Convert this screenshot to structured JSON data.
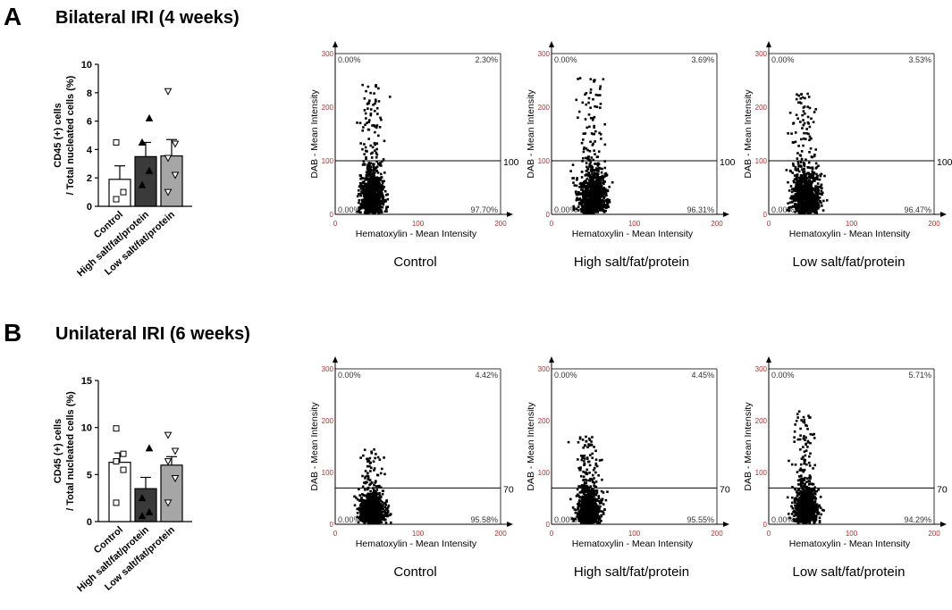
{
  "panels": [
    {
      "letter": "A",
      "title": "Bilateral IRI (4 weeks)",
      "bar": {
        "type": "bar",
        "ylabel_line1": "CD45 (+) cells",
        "ylabel_line2": "/ Total nucleated cells (%)",
        "ylim": [
          0,
          10
        ],
        "yticks": [
          "0",
          "2",
          "4",
          "6",
          "8",
          "10"
        ],
        "categories": [
          "Control",
          "High salt/fat/protein",
          "Low salt/fat/protein"
        ],
        "values": [
          1.9,
          3.5,
          3.55
        ],
        "errors": [
          0.95,
          1.0,
          1.15
        ],
        "fills": [
          "#ffffff",
          "#3a3a3a",
          "#a6a6a6"
        ],
        "points": [
          [
            0.5,
            1.0,
            4.5
          ],
          [
            1.5,
            2.5,
            4.5,
            6.2
          ],
          [
            1.0,
            2.2,
            3.4,
            4.4,
            8.1
          ]
        ],
        "markers": [
          "square",
          "triangle-up",
          "triangle-down"
        ]
      },
      "scatters": [
        {
          "subtitle": "Control",
          "threshold": "100",
          "q_tl": "0.00%",
          "q_tr": "2.30%",
          "q_bl": "0.00%",
          "q_br": "97.70%",
          "cx": 45,
          "cy": 42,
          "sx": 12,
          "sy": 40,
          "ymax": 245,
          "n": 900,
          "seed": 11
        },
        {
          "subtitle": "High salt/fat/protein",
          "threshold": "100",
          "q_tl": "0.00%",
          "q_tr": "3.69%",
          "q_bl": "0.00%",
          "q_br": "96.31%",
          "cx": 50,
          "cy": 45,
          "sx": 13,
          "sy": 42,
          "ymax": 255,
          "n": 950,
          "seed": 23
        },
        {
          "subtitle": "Low salt/fat/protein",
          "threshold": "100",
          "q_tl": "0.00%",
          "q_tr": "3.53%",
          "q_bl": "0.00%",
          "q_br": "96.47%",
          "cx": 45,
          "cy": 48,
          "sx": 14,
          "sy": 40,
          "ymax": 225,
          "n": 950,
          "seed": 37
        }
      ]
    },
    {
      "letter": "B",
      "title": "Unilateral IRI (6 weeks)",
      "bar": {
        "type": "bar",
        "ylabel_line1": "CD45 (+) cells",
        "ylabel_line2": "/ Total nucleated cells (%)",
        "ylim": [
          0,
          15
        ],
        "yticks": [
          "0",
          "5",
          "10",
          "15"
        ],
        "categories": [
          "Control",
          "High salt/fat/protein",
          "Low salt/fat/protein"
        ],
        "values": [
          6.3,
          3.5,
          6.0
        ],
        "errors": [
          1.0,
          1.2,
          0.9
        ],
        "fills": [
          "#ffffff",
          "#3a3a3a",
          "#a6a6a6"
        ],
        "points": [
          [
            2.0,
            5.5,
            6.4,
            7.2,
            9.9
          ],
          [
            0.6,
            1.0,
            2.5,
            7.8
          ],
          [
            2.0,
            4.6,
            6.4,
            7.5,
            9.2
          ]
        ],
        "markers": [
          "square",
          "triangle-up",
          "triangle-down"
        ]
      },
      "scatters": [
        {
          "subtitle": "Control",
          "threshold": "70",
          "q_tl": "0.00%",
          "q_tr": "4.42%",
          "q_bl": "0.00%",
          "q_br": "95.58%",
          "cx": 45,
          "cy": 34,
          "sx": 12,
          "sy": 26,
          "ymax": 150,
          "n": 900,
          "seed": 51
        },
        {
          "subtitle": "High salt/fat/protein",
          "threshold": "70",
          "q_tl": "0.00%",
          "q_tr": "4.45%",
          "q_bl": "0.00%",
          "q_br": "95.55%",
          "cx": 45,
          "cy": 34,
          "sx": 11,
          "sy": 32,
          "ymax": 170,
          "n": 900,
          "seed": 67
        },
        {
          "subtitle": "Low salt/fat/protein",
          "threshold": "70",
          "q_tl": "0.00%",
          "q_tr": "5.71%",
          "q_bl": "0.00%",
          "q_br": "94.29%",
          "cx": 45,
          "cy": 34,
          "sx": 11,
          "sy": 36,
          "ymax": 220,
          "n": 900,
          "seed": 83
        }
      ]
    }
  ],
  "scatter_axes": {
    "xlabel": "Hematoxylin - Mean Intensity",
    "ylabel": "DAB - Mean Intensity",
    "xlim": [
      0,
      200
    ],
    "ylim": [
      0,
      300
    ],
    "xticks": [
      "0",
      "100",
      "200"
    ],
    "yticks": [
      "0",
      "100",
      "200",
      "300"
    ]
  },
  "chart_data": [
    {
      "type": "bar",
      "title": "Bilateral IRI (4 weeks)",
      "categories": [
        "Control",
        "High salt/fat/protein",
        "Low salt/fat/protein"
      ],
      "values": [
        1.9,
        3.5,
        3.55
      ],
      "ylabel": "CD45 (+) cells / Total nucleated cells (%)",
      "ylim": [
        0,
        10
      ]
    },
    {
      "type": "scatter",
      "title": "Bilateral IRI (4 weeks) - Control",
      "xlabel": "Hematoxylin - Mean Intensity",
      "ylabel": "DAB - Mean Intensity",
      "xlim": [
        0,
        200
      ],
      "ylim": [
        0,
        300
      ],
      "threshold": 100,
      "quadrants": {
        "top_left": "0.00%",
        "top_right": "2.30%",
        "bottom_left": "0.00%",
        "bottom_right": "97.70%"
      }
    },
    {
      "type": "scatter",
      "title": "Bilateral IRI (4 weeks) - High salt/fat/protein",
      "xlabel": "Hematoxylin - Mean Intensity",
      "ylabel": "DAB - Mean Intensity",
      "xlim": [
        0,
        200
      ],
      "ylim": [
        0,
        300
      ],
      "threshold": 100,
      "quadrants": {
        "top_left": "0.00%",
        "top_right": "3.69%",
        "bottom_left": "0.00%",
        "bottom_right": "96.31%"
      }
    },
    {
      "type": "scatter",
      "title": "Bilateral IRI (4 weeks) - Low salt/fat/protein",
      "xlabel": "Hematoxylin - Mean Intensity",
      "ylabel": "DAB - Mean Intensity",
      "xlim": [
        0,
        200
      ],
      "ylim": [
        0,
        300
      ],
      "threshold": 100,
      "quadrants": {
        "top_left": "0.00%",
        "top_right": "3.53%",
        "bottom_left": "0.00%",
        "bottom_right": "96.47%"
      }
    },
    {
      "type": "bar",
      "title": "Unilateral IRI (6 weeks)",
      "categories": [
        "Control",
        "High salt/fat/protein",
        "Low salt/fat/protein"
      ],
      "values": [
        6.3,
        3.5,
        6.0
      ],
      "ylabel": "CD45 (+) cells / Total nucleated cells (%)",
      "ylim": [
        0,
        15
      ]
    },
    {
      "type": "scatter",
      "title": "Unilateral IRI (6 weeks) - Control",
      "xlabel": "Hematoxylin - Mean Intensity",
      "ylabel": "DAB - Mean Intensity",
      "xlim": [
        0,
        200
      ],
      "ylim": [
        0,
        300
      ],
      "threshold": 70,
      "quadrants": {
        "top_left": "0.00%",
        "top_right": "4.42%",
        "bottom_left": "0.00%",
        "bottom_right": "95.58%"
      }
    },
    {
      "type": "scatter",
      "title": "Unilateral IRI (6 weeks) - High salt/fat/protein",
      "xlabel": "Hematoxylin - Mean Intensity",
      "ylabel": "DAB - Mean Intensity",
      "xlim": [
        0,
        200
      ],
      "ylim": [
        0,
        300
      ],
      "threshold": 70,
      "quadrants": {
        "top_left": "0.00%",
        "top_right": "4.45%",
        "bottom_left": "0.00%",
        "bottom_right": "95.55%"
      }
    },
    {
      "type": "scatter",
      "title": "Unilateral IRI (6 weeks) - Low salt/fat/protein",
      "xlabel": "Hematoxylin - Mean Intensity",
      "ylabel": "DAB - Mean Intensity",
      "xlim": [
        0,
        200
      ],
      "ylim": [
        0,
        300
      ],
      "threshold": 70,
      "quadrants": {
        "top_left": "0.00%",
        "top_right": "5.71%",
        "bottom_left": "0.00%",
        "bottom_right": "94.29%"
      }
    }
  ]
}
